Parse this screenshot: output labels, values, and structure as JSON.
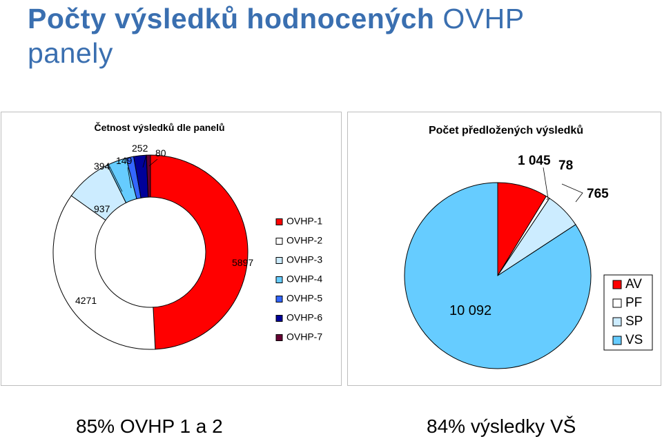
{
  "slide": {
    "title_bold": "Počty výsledků hodnocených",
    "title_light": "OVHP",
    "title_line2": "panely"
  },
  "captions": {
    "left": "85% OVHP 1 a 2",
    "right": "84% výsledky VŠ"
  },
  "chart_data": [
    {
      "type": "pie",
      "variant": "doughnut",
      "title": "Četnost výsledků dle panelů",
      "categories": [
        "OVHP-1",
        "OVHP-2",
        "OVHP-3",
        "OVHP-4",
        "OVHP-5",
        "OVHP-6",
        "OVHP-7"
      ],
      "values": [
        5897,
        4271,
        937,
        394,
        149,
        252,
        80
      ],
      "colors": [
        "#ff0000",
        "#ffffff",
        "#ccecff",
        "#66ccff",
        "#3366ff",
        "#000099",
        "#660033"
      ],
      "data_labels": [
        "5897",
        "4271",
        "937",
        "394",
        "149",
        "252",
        "80"
      ],
      "legend_position": "right"
    },
    {
      "type": "pie",
      "title": "Počet předložených výsledků",
      "categories": [
        "AV",
        "PF",
        "SP",
        "VS"
      ],
      "values": [
        1045,
        78,
        765,
        10092
      ],
      "colors": [
        "#ff0000",
        "#ffffff",
        "#ccecff",
        "#66ccff"
      ],
      "data_labels": [
        "1 045",
        "78",
        "765",
        "10 092"
      ],
      "legend_position": "right"
    }
  ]
}
